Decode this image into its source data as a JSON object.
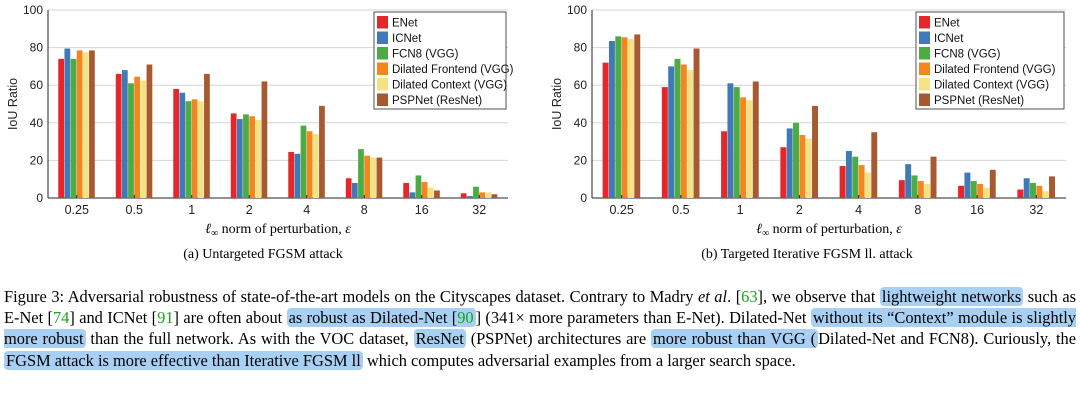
{
  "chart_data": [
    {
      "type": "bar",
      "caption": "(a) Untargeted FGSM attack",
      "xlabel_prefix": "ℓ",
      "xlabel_sub": "∞",
      "xlabel_rest": " norm of perturbation, ",
      "xlabel_var": "ε",
      "ylabel": "IoU Ratio",
      "ylim": [
        0,
        100
      ],
      "yticks": [
        "0",
        "20",
        "40",
        "60",
        "80",
        "100"
      ],
      "categories": [
        "0.25",
        "0.5",
        "1",
        "2",
        "4",
        "8",
        "16",
        "32"
      ],
      "legend_position": "top-right",
      "series": [
        {
          "name": "ENet",
          "color": "#e5262a",
          "values": [
            74,
            66,
            58,
            45,
            24.5,
            10.5,
            8,
            2.5
          ]
        },
        {
          "name": "ICNet",
          "color": "#3f79b6",
          "values": [
            79.5,
            68,
            56,
            42,
            23.5,
            8,
            3,
            1
          ]
        },
        {
          "name": "FCN8 (VGG)",
          "color": "#4cab43",
          "values": [
            74,
            61,
            51.5,
            44.5,
            38.5,
            26,
            12,
            6
          ]
        },
        {
          "name": "Dilated Frontend (VGG)",
          "color": "#f3861f",
          "values": [
            78.5,
            64.5,
            52.5,
            43.5,
            35.5,
            22.5,
            8.5,
            3
          ]
        },
        {
          "name": "Dilated Context (VGG)",
          "color": "#f4e285",
          "values": [
            77.5,
            62.5,
            51.5,
            41.5,
            34,
            21.5,
            5.5,
            3
          ]
        },
        {
          "name": "PSPNet (ResNet)",
          "color": "#a75a31",
          "values": [
            78.5,
            71,
            66,
            62,
            49,
            21.5,
            4,
            2
          ]
        }
      ]
    },
    {
      "type": "bar",
      "caption": "(b) Targeted Iterative FGSM ll. attack",
      "xlabel_prefix": "ℓ",
      "xlabel_sub": "∞",
      "xlabel_rest": " norm of perturbation, ",
      "xlabel_var": "ε",
      "ylabel": "IoU Ratio",
      "ylim": [
        0,
        100
      ],
      "yticks": [
        "0",
        "20",
        "40",
        "60",
        "80",
        "100"
      ],
      "categories": [
        "0.25",
        "0.5",
        "1",
        "2",
        "4",
        "8",
        "16",
        "32"
      ],
      "legend_position": "top-right",
      "series": [
        {
          "name": "ENet",
          "color": "#e5262a",
          "values": [
            72,
            59,
            35.5,
            27,
            17,
            9.5,
            6.5,
            4.5
          ]
        },
        {
          "name": "ICNet",
          "color": "#3f79b6",
          "values": [
            83.5,
            70,
            61,
            37,
            25,
            18,
            13.5,
            10.5
          ]
        },
        {
          "name": "FCN8 (VGG)",
          "color": "#4cab43",
          "values": [
            86,
            74,
            59,
            40,
            22,
            12,
            9,
            8
          ]
        },
        {
          "name": "Dilated Frontend (VGG)",
          "color": "#f3861f",
          "values": [
            85.5,
            71,
            53.5,
            33.5,
            17.5,
            9,
            7.5,
            6.5
          ]
        },
        {
          "name": "Dilated Context (VGG)",
          "color": "#f4e285",
          "values": [
            84.5,
            68,
            52,
            31.5,
            13.5,
            7.5,
            5.5,
            3.5
          ]
        },
        {
          "name": "PSPNet (ResNet)",
          "color": "#a75a31",
          "values": [
            87,
            79.5,
            62,
            49,
            35,
            22,
            15,
            11.5
          ]
        }
      ]
    }
  ],
  "caption": {
    "p1": "Figure 3: Adversarial robustness of state-of-the-art models on the Cityscapes dataset. Contrary to Madry ",
    "p1_it": "et al",
    "p1b": ". [",
    "r63": "63",
    "p2": "], we observe that ",
    "h1": "lightweight networks",
    "p3": " such as E-Net [",
    "r74": "74",
    "p4": "] and ICNet [",
    "r91": "91",
    "p5": "] are often about ",
    "h2": "as robust as Dilated-Net [",
    "r90": "90",
    "p6": "] (341× more parameters than E-Net). Dilated-Net ",
    "h3": "without its “Context” module is slightly more robust",
    "p7": " than the full network. As with the VOC dataset, ",
    "h4": "ResNet",
    "p8": " (PSPNet) architectures are ",
    "h5": "more robust than VGG (",
    "p9": "Dilated-Net and FCN8). Curiously, the ",
    "h6": "FGSM attack is more effective than Iterative FGSM ll",
    "p10": " which computes adversarial examples from a larger search space."
  }
}
